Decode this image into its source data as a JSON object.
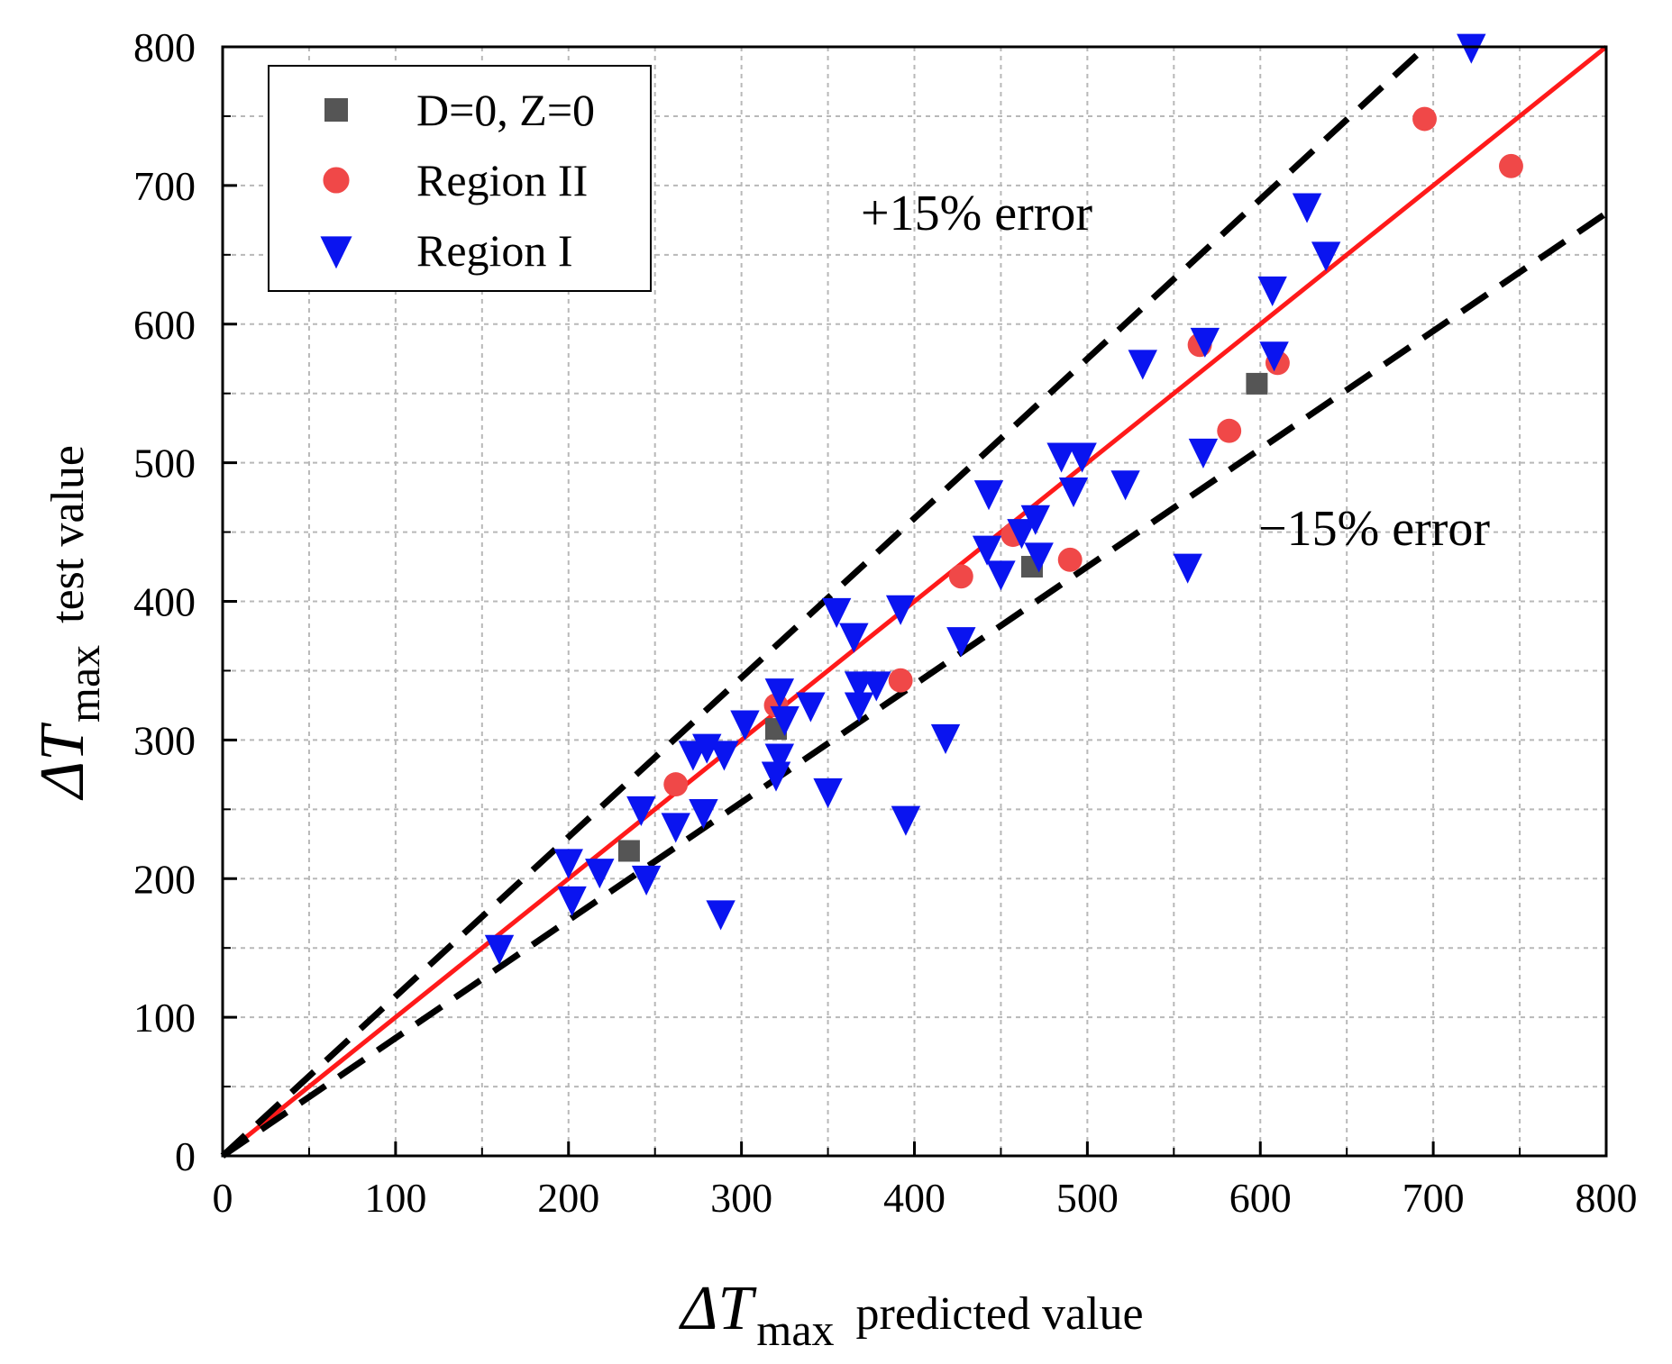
{
  "chart_data": {
    "type": "scatter",
    "xlabel": {
      "symbol": "ΔT",
      "subscript": "max",
      "text": "predicted  value"
    },
    "ylabel": {
      "symbol": "ΔT",
      "subscript": "max",
      "text": "test  value"
    },
    "xlim": [
      0,
      800
    ],
    "ylim": [
      0,
      800
    ],
    "xticks": [
      "0",
      "100",
      "200",
      "300",
      "400",
      "500",
      "600",
      "700",
      "800"
    ],
    "yticks": [
      "0",
      "100",
      "200",
      "300",
      "400",
      "500",
      "600",
      "700",
      "800"
    ],
    "grid": true,
    "legend_position": "top-left",
    "annotations": {
      "upper": "+15% error",
      "lower": "−15% error"
    },
    "reference_lines": [
      {
        "name": "y = x",
        "slope": 1.0,
        "color": "#ff1a1a",
        "style": "solid"
      },
      {
        "name": "+15% error",
        "slope": 1.15,
        "color": "#000000",
        "style": "dashed"
      },
      {
        "name": "−15% error",
        "slope": 0.85,
        "color": "#000000",
        "style": "dashed"
      }
    ],
    "series": [
      {
        "name": "D=0, Z=0",
        "marker": "square",
        "color": "#555555",
        "points": [
          [
            235,
            220
          ],
          [
            320,
            308
          ],
          [
            468,
            425
          ],
          [
            598,
            557
          ]
        ]
      },
      {
        "name": "Region II",
        "marker": "circle",
        "color": "#f04848",
        "points": [
          [
            262,
            268
          ],
          [
            320,
            325
          ],
          [
            392,
            343
          ],
          [
            427,
            418
          ],
          [
            457,
            448
          ],
          [
            490,
            430
          ],
          [
            565,
            585
          ],
          [
            582,
            523
          ],
          [
            610,
            572
          ],
          [
            695,
            748
          ],
          [
            745,
            714
          ]
        ]
      },
      {
        "name": "Region I",
        "marker": "triangle-down",
        "color": "#0a14f0",
        "points": [
          [
            160,
            150
          ],
          [
            200,
            212
          ],
          [
            202,
            185
          ],
          [
            218,
            205
          ],
          [
            242,
            250
          ],
          [
            245,
            200
          ],
          [
            262,
            238
          ],
          [
            272,
            290
          ],
          [
            278,
            248
          ],
          [
            280,
            295
          ],
          [
            288,
            175
          ],
          [
            290,
            290
          ],
          [
            302,
            312
          ],
          [
            320,
            275
          ],
          [
            322,
            288
          ],
          [
            322,
            335
          ],
          [
            325,
            315
          ],
          [
            340,
            325
          ],
          [
            350,
            263
          ],
          [
            355,
            393
          ],
          [
            365,
            375
          ],
          [
            368,
            340
          ],
          [
            368,
            325
          ],
          [
            378,
            340
          ],
          [
            392,
            395
          ],
          [
            395,
            243
          ],
          [
            418,
            302
          ],
          [
            427,
            372
          ],
          [
            442,
            438
          ],
          [
            443,
            478
          ],
          [
            450,
            420
          ],
          [
            462,
            450
          ],
          [
            470,
            460
          ],
          [
            472,
            433
          ],
          [
            485,
            505
          ],
          [
            492,
            480
          ],
          [
            497,
            505
          ],
          [
            522,
            485
          ],
          [
            532,
            572
          ],
          [
            558,
            425
          ],
          [
            567,
            508
          ],
          [
            568,
            588
          ],
          [
            607,
            625
          ],
          [
            608,
            578
          ],
          [
            627,
            685
          ],
          [
            638,
            650
          ],
          [
            722,
            800
          ]
        ]
      }
    ]
  }
}
